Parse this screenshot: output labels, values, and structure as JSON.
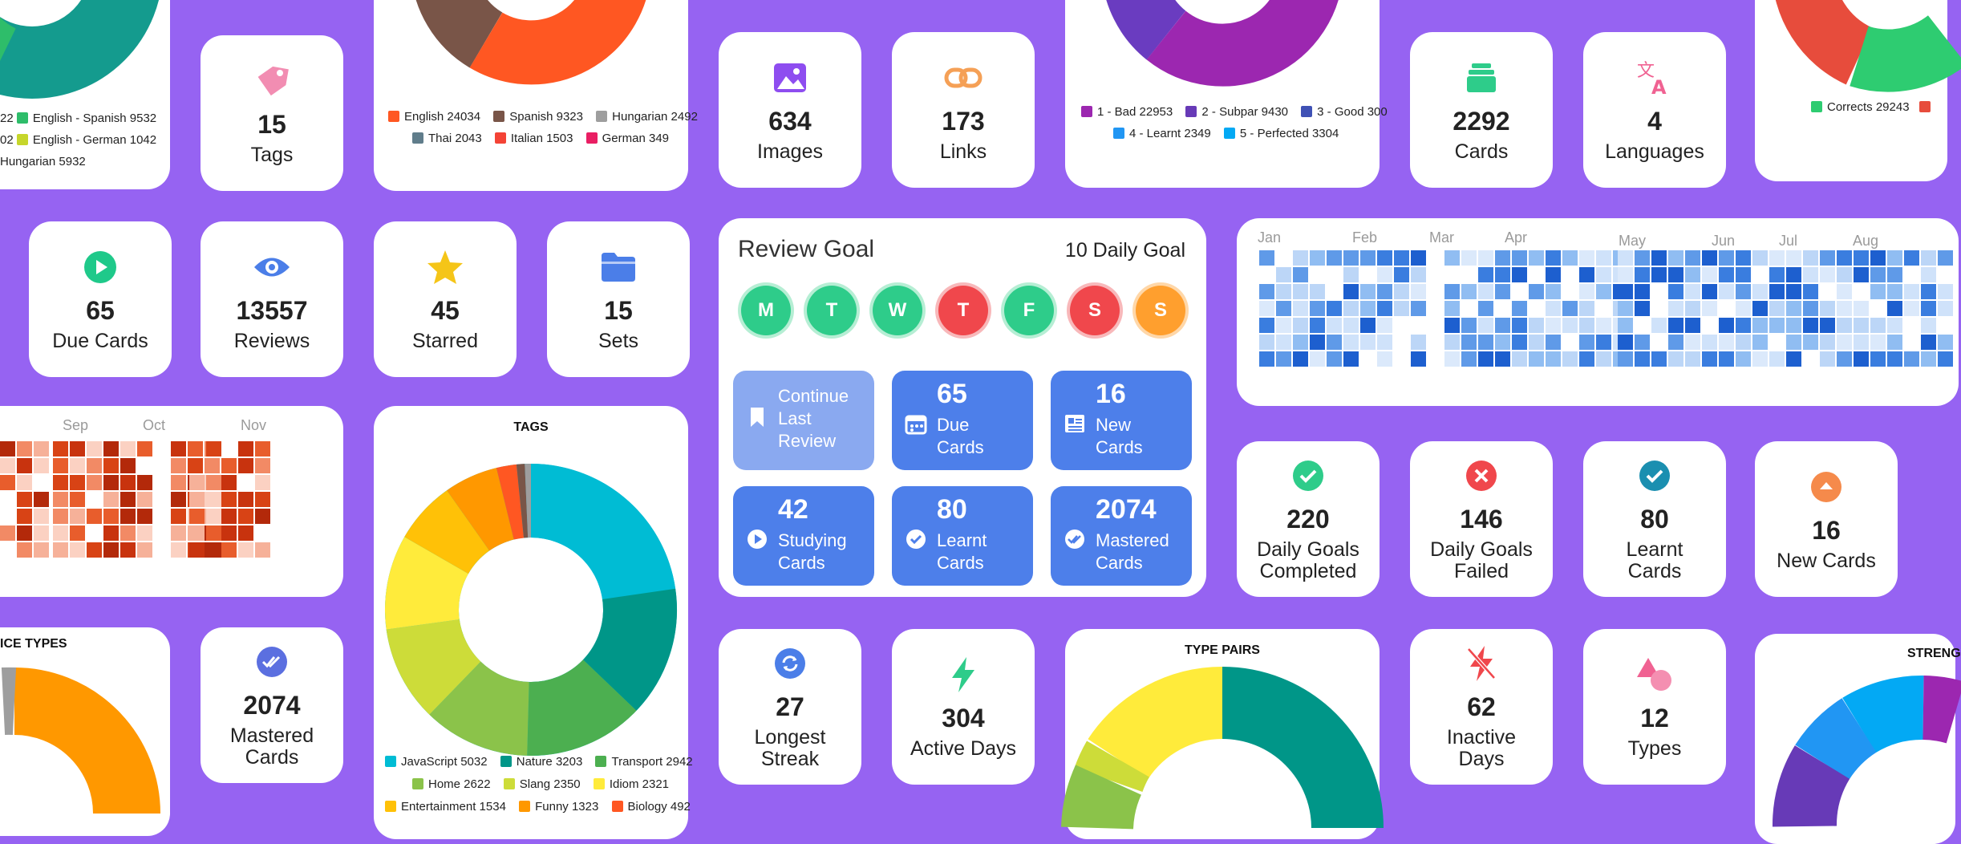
{
  "top_left_legend": [
    "22",
    "English - Spanish 9532",
    "02",
    "English - German 1042",
    "Hungarian 5932"
  ],
  "tags_stat": {
    "value": "15",
    "label": "Tags"
  },
  "lang_pairs_legend": [
    "English 24034",
    "Spanish 9323",
    "Hungarian 2492",
    "Thai 2043",
    "Italian 1503",
    "German 349"
  ],
  "images_stat": {
    "value": "634",
    "label": "Images"
  },
  "links_stat": {
    "value": "173",
    "label": "Links"
  },
  "ratings_legend": [
    "1 - Bad 22953",
    "2 - Subpar 9430",
    "3 - Good 300",
    "4 - Learnt 2349",
    "5 - Perfected 3304"
  ],
  "cards_stat": {
    "value": "2292",
    "label": "Cards"
  },
  "languages_stat": {
    "value": "4",
    "label": "Languages"
  },
  "corrects_legend": [
    "Corrects 29243"
  ],
  "due_stat": {
    "value": "65",
    "label": "Due Cards"
  },
  "reviews_stat": {
    "value": "13557",
    "label": "Reviews"
  },
  "starred_stat": {
    "value": "45",
    "label": "Starred"
  },
  "sets_stat": {
    "value": "15",
    "label": "Sets"
  },
  "review_goal": {
    "title": "Review Goal",
    "goal": "10 Daily Goal",
    "days": [
      "M",
      "T",
      "W",
      "T",
      "F",
      "S",
      "S"
    ],
    "tiles": [
      {
        "number": "",
        "label": "Continue Last Review"
      },
      {
        "number": "65",
        "label": "Due Cards"
      },
      {
        "number": "16",
        "label": "New Cards"
      },
      {
        "number": "42",
        "label": "Studying Cards"
      },
      {
        "number": "80",
        "label": "Learnt Cards"
      },
      {
        "number": "2074",
        "label": "Mastered Cards"
      }
    ]
  },
  "heatmap_blue_months": [
    "Jan",
    "Feb",
    "Mar",
    "Apr",
    "May",
    "Jun",
    "Jul",
    "Aug"
  ],
  "heatmap_red_months": [
    "Sep",
    "Oct",
    "Nov"
  ],
  "tags_chart_title": "TAGS",
  "tags_legend": [
    "JavaScript 5032",
    "Nature 3203",
    "Transport 2942",
    "Home 2622",
    "Slang 2350",
    "Idiom 2321",
    "Entertainment 1534",
    "Funny 1323",
    "Biology 492"
  ],
  "goals_completed_stat": {
    "value": "220",
    "label": "Daily Goals Completed"
  },
  "goals_failed_stat": {
    "value": "146",
    "label": "Daily Goals Failed"
  },
  "learnt_stat": {
    "value": "80",
    "label": "Learnt Cards"
  },
  "new_stat": {
    "value": "16",
    "label": "New Cards"
  },
  "practice_types_title": "ICE TYPES",
  "mastered_stat": {
    "value": "2074",
    "label": "Mastered Cards"
  },
  "streak_stat": {
    "value": "27",
    "label": "Longest Streak"
  },
  "active_stat": {
    "value": "304",
    "label": "Active Days"
  },
  "type_pairs_title": "TYPE PAIRS",
  "inactive_stat": {
    "value": "62",
    "label": "Inactive Days"
  },
  "types_stat": {
    "value": "12",
    "label": "Types"
  },
  "strength_title": "STRENG",
  "colors": {
    "background": "#9663f2",
    "tile_blue": "#4d7fea",
    "tile_light": "#8aa9f0"
  }
}
